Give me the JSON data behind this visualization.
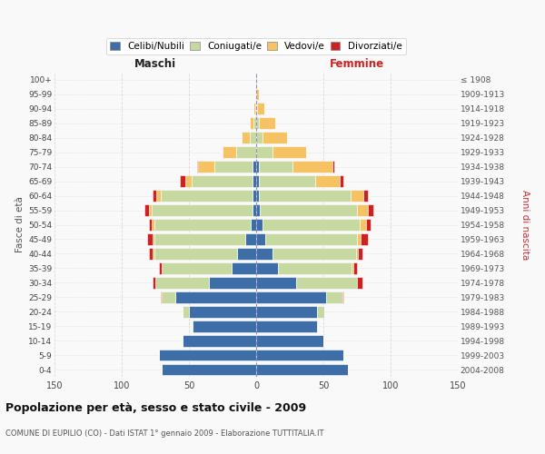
{
  "age_groups": [
    "0-4",
    "5-9",
    "10-14",
    "15-19",
    "20-24",
    "25-29",
    "30-34",
    "35-39",
    "40-44",
    "45-49",
    "50-54",
    "55-59",
    "60-64",
    "65-69",
    "70-74",
    "75-79",
    "80-84",
    "85-89",
    "90-94",
    "95-99",
    "100+"
  ],
  "birth_years": [
    "2004-2008",
    "1999-2003",
    "1994-1998",
    "1989-1993",
    "1984-1988",
    "1979-1983",
    "1974-1978",
    "1969-1973",
    "1964-1968",
    "1959-1963",
    "1954-1958",
    "1949-1953",
    "1944-1948",
    "1939-1943",
    "1934-1938",
    "1929-1933",
    "1924-1928",
    "1919-1923",
    "1914-1918",
    "1909-1913",
    "≤ 1908"
  ],
  "male_celibi": [
    70,
    72,
    55,
    47,
    50,
    60,
    35,
    18,
    14,
    8,
    4,
    3,
    3,
    3,
    3,
    0,
    0,
    0,
    0,
    0,
    0
  ],
  "male_coniugati": [
    0,
    0,
    0,
    1,
    5,
    10,
    40,
    52,
    62,
    68,
    72,
    75,
    68,
    45,
    28,
    15,
    5,
    2,
    1,
    0,
    0
  ],
  "male_vedovi": [
    0,
    0,
    0,
    0,
    0,
    0,
    0,
    0,
    1,
    1,
    2,
    2,
    3,
    5,
    12,
    10,
    6,
    3,
    1,
    0,
    0
  ],
  "male_divorziati": [
    0,
    0,
    0,
    0,
    0,
    1,
    2,
    2,
    3,
    4,
    2,
    3,
    3,
    4,
    1,
    0,
    0,
    0,
    0,
    0,
    0
  ],
  "female_celibi": [
    68,
    65,
    50,
    45,
    45,
    52,
    30,
    16,
    12,
    7,
    5,
    3,
    2,
    2,
    2,
    0,
    0,
    0,
    0,
    0,
    0
  ],
  "female_coniugati": [
    0,
    0,
    0,
    1,
    6,
    12,
    45,
    55,
    62,
    68,
    72,
    72,
    68,
    42,
    25,
    12,
    5,
    2,
    1,
    0,
    0
  ],
  "female_vedovi": [
    0,
    0,
    0,
    0,
    0,
    0,
    0,
    1,
    2,
    3,
    5,
    8,
    10,
    18,
    30,
    25,
    18,
    12,
    5,
    2,
    1
  ],
  "female_divorziati": [
    0,
    0,
    0,
    0,
    0,
    1,
    4,
    3,
    3,
    5,
    3,
    4,
    3,
    3,
    1,
    0,
    0,
    0,
    0,
    0,
    0
  ],
  "color_celibi": "#3d6ea8",
  "color_coniugati": "#c5d9a0",
  "color_vedovi": "#f5c264",
  "color_divorziati": "#cc2222",
  "title": "Popolazione per età, sesso e stato civile - 2009",
  "subtitle": "COMUNE DI EUPILIO (CO) - Dati ISTAT 1° gennaio 2009 - Elaborazione TUTTITALIA.IT",
  "xlabel_left": "Maschi",
  "xlabel_right": "Femmine",
  "ylabel_left": "Fasce di età",
  "ylabel_right": "Anni di nascita",
  "xlim": 150,
  "bg_color": "#f9f9f9",
  "grid_color": "#cccccc"
}
